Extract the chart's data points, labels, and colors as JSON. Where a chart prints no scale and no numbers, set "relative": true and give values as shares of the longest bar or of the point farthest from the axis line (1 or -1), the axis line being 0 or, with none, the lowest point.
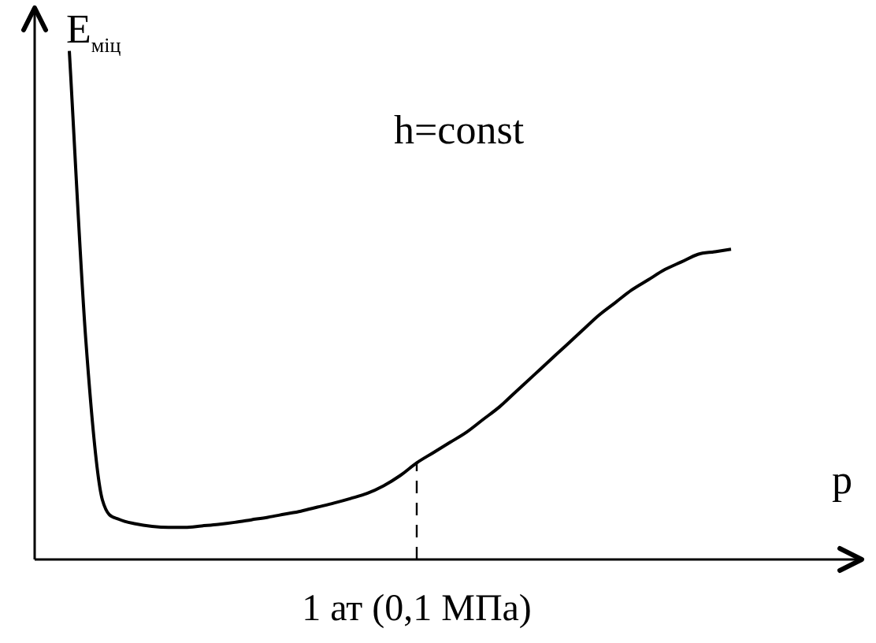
{
  "chart_data": {
    "type": "line",
    "relative": true,
    "color": "#000000",
    "xlabel": "p",
    "ylabel": "E$_{міц}$",
    "annotations": [
      "h=const",
      {
        "text": "1 ат (0,1 МПа)",
        "y": 0.19
      }
    ],
    "categories": [
      null,
      null,
      null,
      null,
      null,
      null,
      null,
      null,
      null,
      null,
      null,
      null,
      null,
      null,
      null,
      null,
      null,
      null,
      null,
      null,
      null,
      null,
      null,
      null,
      null,
      null,
      null,
      null,
      null,
      null,
      null,
      null,
      null,
      null,
      null,
      null,
      null,
      null,
      null,
      null,
      null
    ],
    "values": [
      1.0,
      0.43,
      0.117,
      0.079,
      0.07,
      0.065,
      0.063,
      0.063,
      0.066,
      0.069,
      0.073,
      0.078,
      0.083,
      0.089,
      0.095,
      0.103,
      0.111,
      0.12,
      0.13,
      0.145,
      0.165,
      0.19,
      0.21,
      0.23,
      0.25,
      0.275,
      0.3,
      0.33,
      0.36,
      0.39,
      0.42,
      0.45,
      0.48,
      0.505,
      0.53,
      0.55,
      0.57,
      0.585,
      0.6,
      0.605,
      0.61
    ]
  }
}
